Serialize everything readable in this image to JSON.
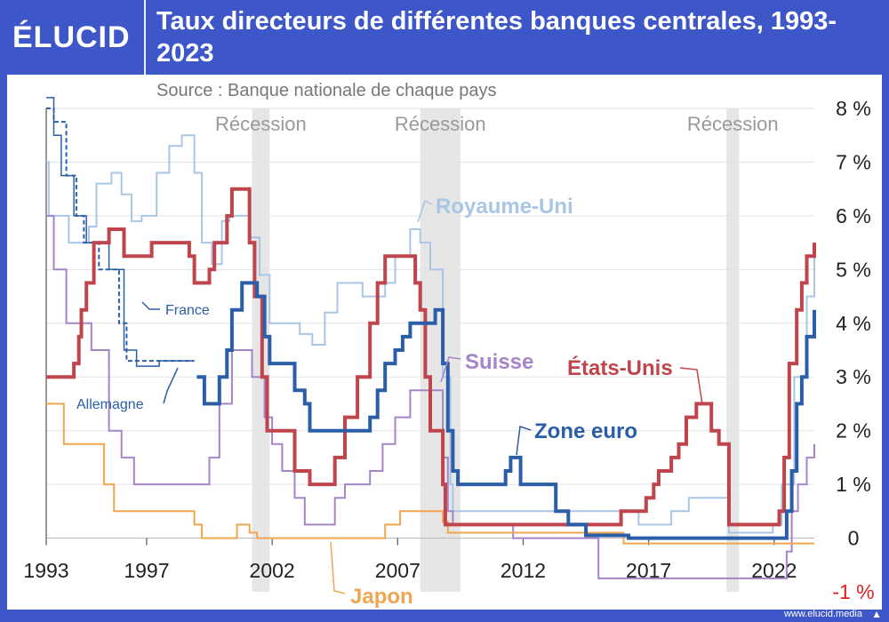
{
  "header": {
    "logo": "ÉLUCID",
    "title": "Taux directeurs de différentes banques centrales, 1993-2023",
    "source": "Source : Banque nationale de chaque pays",
    "url": "www.elucid.media"
  },
  "colors": {
    "background": "#3d56c8",
    "etats_unis": "#c0444b",
    "zone_euro": "#2b5ea8",
    "royaume_uni": "#a9c6e6",
    "suisse": "#a585c7",
    "japon": "#f0a650",
    "france": "#2b5ea8",
    "allemagne": "#2b5ea8",
    "recession": "#e6e6e6"
  },
  "chart_data": {
    "type": "line",
    "title": "Taux directeurs de différentes banques centrales, 1993-2023",
    "x_ticks": [
      "1993",
      "1997",
      "2002",
      "2007",
      "2012",
      "2017",
      "2022"
    ],
    "x_tick_values": [
      1993,
      1997,
      2002,
      2007,
      2012,
      2017,
      2022
    ],
    "y_ticks": [
      "8 %",
      "7 %",
      "6 %",
      "5 %",
      "4 %",
      "3 %",
      "2 %",
      "1 %",
      "0",
      "-1 %"
    ],
    "y_tick_values": [
      8,
      7,
      6,
      5,
      4,
      3,
      2,
      1,
      0,
      -1
    ],
    "xlim": [
      1993,
      2023.6
    ],
    "ylim": [
      -1,
      8
    ],
    "grid": true,
    "recessions": [
      {
        "label": "Récession",
        "start": 2001.2,
        "end": 2001.9
      },
      {
        "label": "Récession",
        "start": 2007.9,
        "end": 2009.5
      },
      {
        "label": "Récession",
        "start": 2020.1,
        "end": 2020.6
      }
    ],
    "series": [
      {
        "name": "Royaume-Uni",
        "key": "royaume_uni",
        "width": 2,
        "points": [
          [
            1993,
            7
          ],
          [
            1993.1,
            6
          ],
          [
            1993.9,
            5.5
          ],
          [
            1994.7,
            5.8
          ],
          [
            1995,
            6.6
          ],
          [
            1995.6,
            6.8
          ],
          [
            1996,
            6.4
          ],
          [
            1996.4,
            5.9
          ],
          [
            1996.8,
            6
          ],
          [
            1997.4,
            6.8
          ],
          [
            1997.9,
            7.3
          ],
          [
            1998.4,
            7.5
          ],
          [
            1998.9,
            6.8
          ],
          [
            1999.2,
            5.5
          ],
          [
            1999.6,
            5.1
          ],
          [
            2000,
            5.9
          ],
          [
            2000.3,
            6
          ],
          [
            2001.1,
            5.6
          ],
          [
            2001.5,
            4.9
          ],
          [
            2001.9,
            4
          ],
          [
            2003.1,
            3.8
          ],
          [
            2003.6,
            3.6
          ],
          [
            2004.1,
            4.2
          ],
          [
            2004.6,
            4.75
          ],
          [
            2005.6,
            4.5
          ],
          [
            2006.5,
            4.75
          ],
          [
            2006.9,
            5.25
          ],
          [
            2007.5,
            5.75
          ],
          [
            2007.9,
            5.5
          ],
          [
            2008.3,
            5
          ],
          [
            2008.8,
            3
          ],
          [
            2009.1,
            1
          ],
          [
            2009.2,
            0.5
          ],
          [
            2016.6,
            0.25
          ],
          [
            2017.9,
            0.5
          ],
          [
            2018.6,
            0.75
          ],
          [
            2020.2,
            0.1
          ],
          [
            2021.95,
            0.25
          ],
          [
            2022.3,
            1
          ],
          [
            2022.8,
            3
          ],
          [
            2023.3,
            4.5
          ],
          [
            2023.6,
            5.25
          ]
        ]
      },
      {
        "name": "Suisse",
        "key": "suisse",
        "width": 2,
        "points": [
          [
            1993,
            6
          ],
          [
            1993.3,
            5
          ],
          [
            1993.8,
            4
          ],
          [
            1994.8,
            3.5
          ],
          [
            1995.5,
            2
          ],
          [
            1996,
            1.5
          ],
          [
            1996.5,
            1
          ],
          [
            1997,
            1
          ],
          [
            1998,
            1
          ],
          [
            1998.9,
            1
          ],
          [
            1999.5,
            1.5
          ],
          [
            1999.9,
            2.5
          ],
          [
            2000.4,
            3.5
          ],
          [
            2001.2,
            3
          ],
          [
            2001.7,
            2.25
          ],
          [
            2002,
            1.75
          ],
          [
            2002.4,
            1.25
          ],
          [
            2002.9,
            0.75
          ],
          [
            2003.3,
            0.25
          ],
          [
            2004.5,
            0.75
          ],
          [
            2004.9,
            1
          ],
          [
            2005.9,
            1.25
          ],
          [
            2006.4,
            1.75
          ],
          [
            2006.9,
            2.25
          ],
          [
            2007.5,
            2.75
          ],
          [
            2008.2,
            2.75
          ],
          [
            2008.8,
            1.5
          ],
          [
            2009,
            0.5
          ],
          [
            2009.2,
            0.25
          ],
          [
            2011.6,
            0
          ],
          [
            2015,
            -0.75
          ],
          [
            2022.5,
            -0.25
          ],
          [
            2022.7,
            0.5
          ],
          [
            2022.95,
            1
          ],
          [
            2023.3,
            1.5
          ],
          [
            2023.6,
            1.75
          ]
        ]
      },
      {
        "name": "Japon",
        "key": "japon",
        "width": 2,
        "points": [
          [
            1993,
            2.5
          ],
          [
            1993.7,
            1.75
          ],
          [
            1995.3,
            1
          ],
          [
            1995.7,
            0.5
          ],
          [
            1998.9,
            0.25
          ],
          [
            1999.2,
            0
          ],
          [
            2000.6,
            0.25
          ],
          [
            2001.1,
            0.1
          ],
          [
            2001.4,
            0
          ],
          [
            2006.5,
            0.25
          ],
          [
            2007.1,
            0.5
          ],
          [
            2008.8,
            0.3
          ],
          [
            2009,
            0.1
          ],
          [
            2013,
            0.1
          ],
          [
            2016,
            -0.1
          ],
          [
            2023.6,
            -0.1
          ]
        ]
      },
      {
        "name": "France",
        "key": "france",
        "width": 1.5,
        "label_name": "France",
        "points": [
          [
            1993,
            8.2
          ],
          [
            1993.3,
            7.5
          ],
          [
            1993.6,
            6.75
          ],
          [
            1994.1,
            6
          ],
          [
            1994.6,
            5.5
          ],
          [
            1995.5,
            5
          ],
          [
            1996.1,
            3.5
          ],
          [
            1996.6,
            3.2
          ],
          [
            1997.5,
            3.3
          ],
          [
            1998.9,
            3.3
          ]
        ]
      },
      {
        "name": "Allemagne",
        "key": "allemagne",
        "width": 2,
        "dashed": true,
        "label_name": "Allemagne",
        "points": [
          [
            1993,
            8
          ],
          [
            1993.3,
            7.75
          ],
          [
            1993.8,
            6.75
          ],
          [
            1994.2,
            6
          ],
          [
            1994.5,
            5.5
          ],
          [
            1995.1,
            5
          ],
          [
            1995.9,
            4
          ],
          [
            1996.2,
            3.3
          ],
          [
            1998.9,
            3.3
          ]
        ]
      },
      {
        "name": "États-Unis",
        "key": "etats_unis",
        "width": 4,
        "points": [
          [
            1993,
            3
          ],
          [
            1994.1,
            3.25
          ],
          [
            1994.3,
            3.75
          ],
          [
            1994.4,
            4.25
          ],
          [
            1994.6,
            4.75
          ],
          [
            1994.9,
            5.5
          ],
          [
            1995.5,
            5.75
          ],
          [
            1996.1,
            5.25
          ],
          [
            1997.2,
            5.5
          ],
          [
            1998.7,
            5.25
          ],
          [
            1998.9,
            4.75
          ],
          [
            1999.5,
            5
          ],
          [
            1999.7,
            5.5
          ],
          [
            2000.2,
            6
          ],
          [
            2000.4,
            6.5
          ],
          [
            2001.1,
            5.5
          ],
          [
            2001.3,
            4.5
          ],
          [
            2001.6,
            3
          ],
          [
            2001.8,
            2
          ],
          [
            2002.9,
            1.25
          ],
          [
            2003.5,
            1
          ],
          [
            2004.5,
            1.5
          ],
          [
            2004.9,
            2.25
          ],
          [
            2005.4,
            3
          ],
          [
            2005.9,
            4
          ],
          [
            2006.2,
            4.75
          ],
          [
            2006.5,
            5.25
          ],
          [
            2007.7,
            4.75
          ],
          [
            2007.9,
            4.25
          ],
          [
            2008.1,
            3
          ],
          [
            2008.3,
            2
          ],
          [
            2008.8,
            1
          ],
          [
            2008.9,
            0.25
          ],
          [
            2015.9,
            0.5
          ],
          [
            2016.9,
            0.75
          ],
          [
            2017.2,
            1
          ],
          [
            2017.4,
            1.25
          ],
          [
            2017.9,
            1.5
          ],
          [
            2018.2,
            1.75
          ],
          [
            2018.5,
            2.25
          ],
          [
            2018.9,
            2.5
          ],
          [
            2019.5,
            2
          ],
          [
            2019.8,
            1.75
          ],
          [
            2020.2,
            0.25
          ],
          [
            2022.2,
            0.5
          ],
          [
            2022.4,
            1.5
          ],
          [
            2022.6,
            3.25
          ],
          [
            2022.9,
            4.25
          ],
          [
            2023.1,
            4.75
          ],
          [
            2023.3,
            5.25
          ],
          [
            2023.6,
            5.5
          ]
        ]
      },
      {
        "name": "Zone euro",
        "key": "zone_euro",
        "width": 4,
        "points": [
          [
            1999,
            3
          ],
          [
            1999.3,
            2.5
          ],
          [
            1999.9,
            3
          ],
          [
            2000.2,
            3.5
          ],
          [
            2000.4,
            4.25
          ],
          [
            2000.8,
            4.75
          ],
          [
            2001.4,
            4.5
          ],
          [
            2001.7,
            3.75
          ],
          [
            2001.9,
            3.25
          ],
          [
            2002.9,
            2.75
          ],
          [
            2003.3,
            2.5
          ],
          [
            2003.5,
            2
          ],
          [
            2005.9,
            2.25
          ],
          [
            2006.2,
            2.75
          ],
          [
            2006.5,
            3.25
          ],
          [
            2006.9,
            3.5
          ],
          [
            2007.2,
            3.75
          ],
          [
            2007.5,
            4
          ],
          [
            2008.5,
            4.25
          ],
          [
            2008.8,
            3.25
          ],
          [
            2009,
            2
          ],
          [
            2009.2,
            1.25
          ],
          [
            2009.4,
            1
          ],
          [
            2011.3,
            1.25
          ],
          [
            2011.5,
            1.5
          ],
          [
            2011.9,
            1
          ],
          [
            2013.3,
            0.5
          ],
          [
            2013.8,
            0.25
          ],
          [
            2014.5,
            0.05
          ],
          [
            2016.2,
            0
          ],
          [
            2022.5,
            0.5
          ],
          [
            2022.7,
            1.25
          ],
          [
            2022.9,
            2.5
          ],
          [
            2023.1,
            3
          ],
          [
            2023.3,
            3.75
          ],
          [
            2023.6,
            4.25
          ]
        ]
      }
    ],
    "labels": [
      {
        "text": "Royaume-Uni",
        "key": "royaume_uni"
      },
      {
        "text": "Suisse",
        "key": "suisse"
      },
      {
        "text": "États-Unis",
        "key": "etats_unis"
      },
      {
        "text": "Zone euro",
        "key": "zone_euro"
      },
      {
        "text": "Japon",
        "key": "japon"
      },
      {
        "text": "France",
        "key": "france"
      },
      {
        "text": "Allemagne",
        "key": "allemagne"
      }
    ]
  }
}
